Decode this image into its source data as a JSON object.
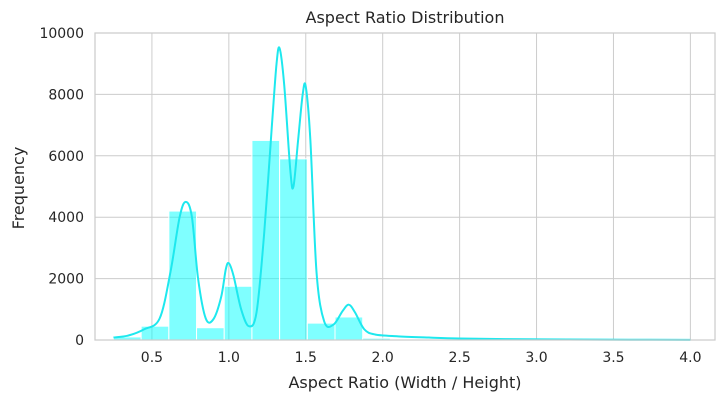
{
  "chart_data": {
    "type": "bar",
    "title": "Aspect Ratio Distribution",
    "xlabel": "Aspect Ratio (Width / Height)",
    "ylabel": "Frequency",
    "xlim": [
      0.13,
      4.16
    ],
    "ylim": [
      0,
      10000
    ],
    "xticks": [
      "0.5",
      "1.0",
      "1.5",
      "2.0",
      "2.5",
      "3.0",
      "3.5",
      "4.0"
    ],
    "yticks": [
      "0",
      "2000",
      "4000",
      "6000",
      "8000",
      "10000"
    ],
    "grid": true,
    "color": "#00ffff",
    "kde_color": "#1ee8ee",
    "bins": [
      {
        "x0": 0.25,
        "x1": 0.43,
        "count": 100
      },
      {
        "x0": 0.43,
        "x1": 0.61,
        "count": 450
      },
      {
        "x0": 0.61,
        "x1": 0.79,
        "count": 4200
      },
      {
        "x0": 0.79,
        "x1": 0.97,
        "count": 400
      },
      {
        "x0": 0.97,
        "x1": 1.15,
        "count": 1750
      },
      {
        "x0": 1.15,
        "x1": 1.33,
        "count": 6500
      },
      {
        "x0": 1.33,
        "x1": 1.51,
        "count": 5900
      },
      {
        "x0": 1.51,
        "x1": 1.69,
        "count": 550
      },
      {
        "x0": 1.69,
        "x1": 1.87,
        "count": 750
      },
      {
        "x0": 1.87,
        "x1": 2.05,
        "count": 60
      },
      {
        "x0": 2.05,
        "x1": 2.23,
        "count": 30
      },
      {
        "x0": 2.23,
        "x1": 2.41,
        "count": 20
      },
      {
        "x0": 2.41,
        "x1": 2.59,
        "count": 15
      },
      {
        "x0": 2.59,
        "x1": 2.77,
        "count": 10
      }
    ],
    "kde": [
      [
        0.25,
        80
      ],
      [
        0.35,
        150
      ],
      [
        0.45,
        350
      ],
      [
        0.55,
        700
      ],
      [
        0.62,
        2200
      ],
      [
        0.68,
        4000
      ],
      [
        0.72,
        4500
      ],
      [
        0.76,
        4000
      ],
      [
        0.8,
        2000
      ],
      [
        0.85,
        700
      ],
      [
        0.9,
        680
      ],
      [
        0.95,
        1400
      ],
      [
        0.98,
        2300
      ],
      [
        1.0,
        2500
      ],
      [
        1.03,
        2100
      ],
      [
        1.08,
        1000
      ],
      [
        1.13,
        450
      ],
      [
        1.18,
        900
      ],
      [
        1.23,
        3500
      ],
      [
        1.28,
        7000
      ],
      [
        1.31,
        9000
      ],
      [
        1.33,
        9500
      ],
      [
        1.36,
        8300
      ],
      [
        1.4,
        5500
      ],
      [
        1.42,
        5000
      ],
      [
        1.45,
        6500
      ],
      [
        1.48,
        8000
      ],
      [
        1.5,
        8250
      ],
      [
        1.53,
        6500
      ],
      [
        1.57,
        2200
      ],
      [
        1.62,
        600
      ],
      [
        1.68,
        500
      ],
      [
        1.74,
        950
      ],
      [
        1.78,
        1150
      ],
      [
        1.82,
        900
      ],
      [
        1.88,
        350
      ],
      [
        1.95,
        180
      ],
      [
        2.1,
        120
      ],
      [
        2.3,
        80
      ],
      [
        2.5,
        50
      ],
      [
        2.8,
        30
      ],
      [
        3.2,
        15
      ],
      [
        3.6,
        8
      ],
      [
        4.0,
        5
      ]
    ]
  }
}
